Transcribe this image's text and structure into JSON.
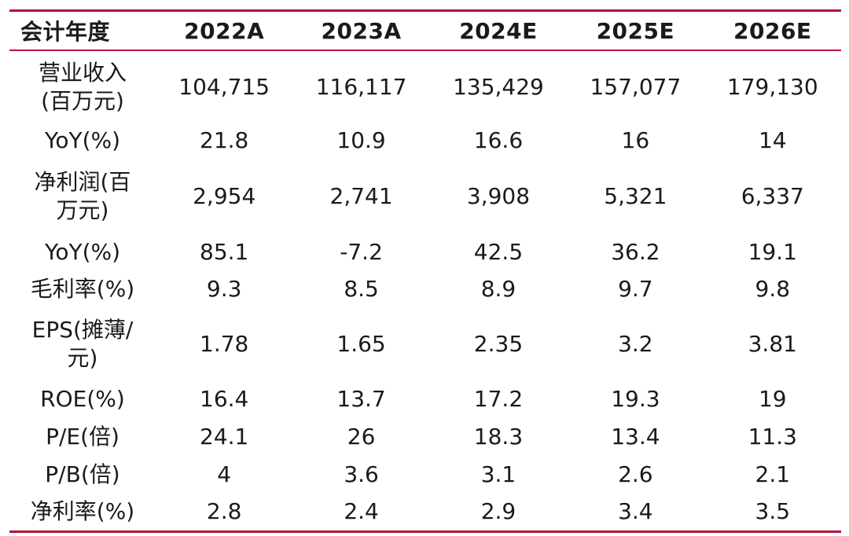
{
  "table": {
    "header": {
      "label": "会计年度",
      "years": [
        "2022A",
        "2023A",
        "2024E",
        "2025E",
        "2026E"
      ]
    },
    "rows": [
      {
        "label_lines": [
          "营业收入",
          "(百万元)"
        ],
        "values": [
          "104,715",
          "116,117",
          "135,429",
          "157,077",
          "179,130"
        ]
      },
      {
        "label_lines": [
          "YoY(%)"
        ],
        "values": [
          "21.8",
          "10.9",
          "16.6",
          "16",
          "14"
        ]
      },
      {
        "label_lines": [
          "净利润(百",
          "万元)"
        ],
        "values": [
          "2,954",
          "2,741",
          "3,908",
          "5,321",
          "6,337"
        ]
      },
      {
        "label_lines": [
          "YoY(%)"
        ],
        "values": [
          "85.1",
          "-7.2",
          "42.5",
          "36.2",
          "19.1"
        ]
      },
      {
        "label_lines": [
          "毛利率(%)"
        ],
        "values": [
          "9.3",
          "8.5",
          "8.9",
          "9.7",
          "9.8"
        ]
      },
      {
        "label_lines": [
          "EPS(摊薄/",
          "元)"
        ],
        "values": [
          "1.78",
          "1.65",
          "2.35",
          "3.2",
          "3.81"
        ]
      },
      {
        "label_lines": [
          "ROE(%)"
        ],
        "values": [
          "16.4",
          "13.7",
          "17.2",
          "19.3",
          "19"
        ]
      },
      {
        "label_lines": [
          "P/E(倍)"
        ],
        "values": [
          "24.1",
          "26",
          "18.3",
          "13.4",
          "11.3"
        ]
      },
      {
        "label_lines": [
          "P/B(倍)"
        ],
        "values": [
          "4",
          "3.6",
          "3.1",
          "2.6",
          "2.1"
        ]
      },
      {
        "label_lines": [
          "净利率(%)"
        ],
        "values": [
          "2.8",
          "2.4",
          "2.9",
          "3.4",
          "3.5"
        ]
      }
    ]
  },
  "colors": {
    "rule": "#b3123b",
    "text": "#1a1a1a",
    "background": "#ffffff"
  }
}
